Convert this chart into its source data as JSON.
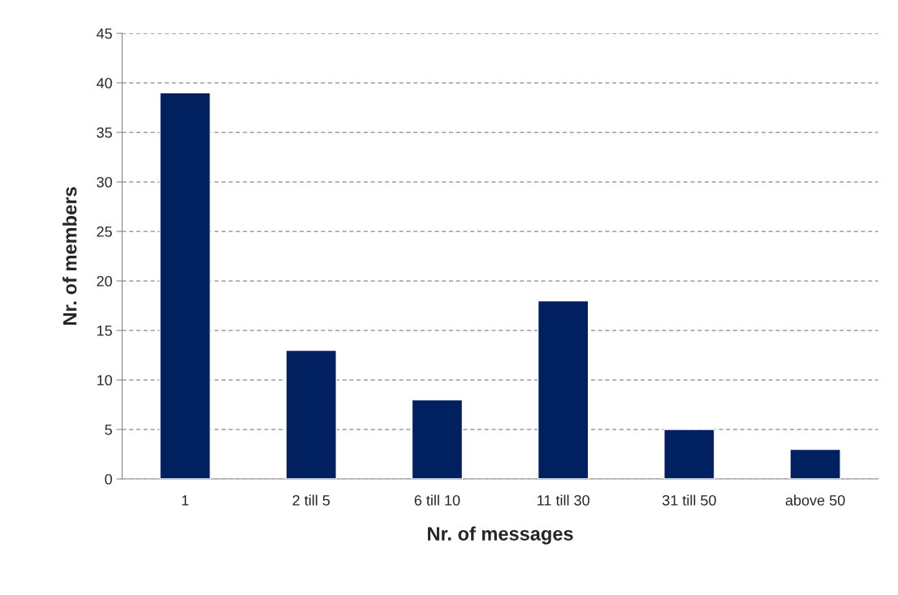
{
  "chart_data": {
    "type": "bar",
    "xlabel": "Nr. of messages",
    "ylabel": "Nr. of members",
    "categories": [
      "1",
      "2 till 5",
      "6 till 10",
      "11 till 30",
      "31 till 50",
      "above 50"
    ],
    "values": [
      39,
      13,
      8,
      18,
      5,
      3
    ],
    "color": "#002060",
    "ylim": [
      0,
      45
    ],
    "yticks": [
      0,
      5,
      10,
      15,
      20,
      25,
      30,
      35,
      40,
      45
    ],
    "grid": "y",
    "legend": false
  }
}
